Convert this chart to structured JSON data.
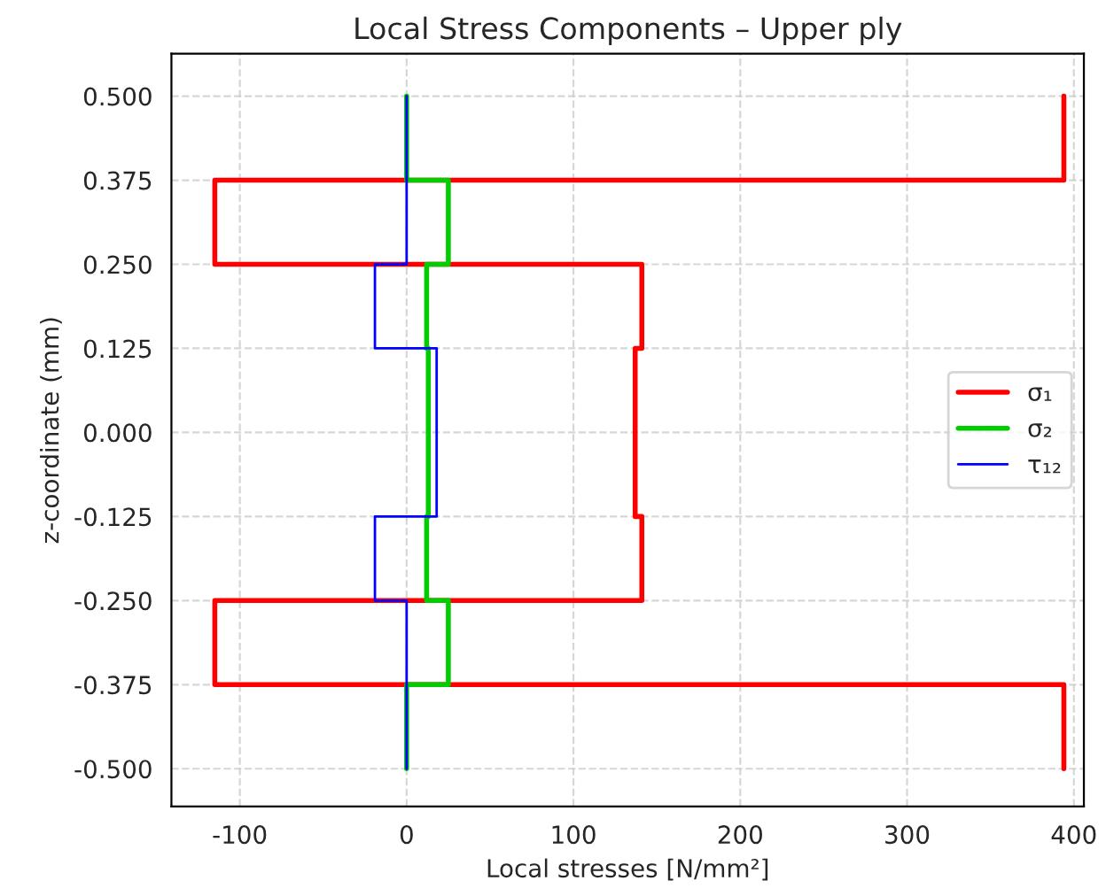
{
  "chart_data": {
    "type": "line",
    "title": "Local Stress Components – Upper ply",
    "xlabel": "Local stresses [N/mm²]",
    "ylabel": "z-coordinate (mm)",
    "series": [
      {
        "name": "σ₁",
        "color": "#ff0000",
        "x": [
          394,
          394,
          -115,
          -115,
          141,
          141,
          137,
          137,
          141,
          141,
          -115,
          -115,
          394,
          394
        ],
        "values": [
          0.5,
          0.375,
          0.375,
          0.25,
          0.25,
          0.125,
          0.125,
          -0.125,
          -0.125,
          -0.25,
          -0.25,
          -0.375,
          -0.375,
          -0.5
        ]
      },
      {
        "name": "σ₂",
        "color": "#00cc00",
        "x": [
          0,
          0,
          25,
          25,
          12,
          12,
          13,
          13,
          12,
          12,
          25,
          25,
          0,
          0
        ],
        "values": [
          0.5,
          0.375,
          0.375,
          0.25,
          0.25,
          0.125,
          0.125,
          -0.125,
          -0.125,
          -0.25,
          -0.25,
          -0.375,
          -0.375,
          -0.5
        ]
      },
      {
        "name": "τ₁₂",
        "color": "#0000ff",
        "x": [
          0,
          0,
          0,
          0,
          -19,
          -19,
          18,
          18,
          -19,
          -19,
          0,
          0,
          0,
          0
        ],
        "values": [
          0.5,
          0.375,
          0.375,
          0.25,
          0.25,
          0.125,
          0.125,
          -0.125,
          -0.125,
          -0.25,
          -0.25,
          -0.375,
          -0.375,
          -0.5
        ]
      }
    ],
    "xlim": [
      -141,
      406
    ],
    "xticks": [
      -100,
      0,
      100,
      200,
      300,
      400
    ],
    "ylim": [
      -0.556,
      0.563
    ],
    "yticks": [
      {
        "value": -0.5,
        "label": "-0.500"
      },
      {
        "value": -0.375,
        "label": "-0.375"
      },
      {
        "value": -0.25,
        "label": "-0.250"
      },
      {
        "value": -0.125,
        "label": "-0.125"
      },
      {
        "value": 0,
        "label": "0.000"
      },
      {
        "value": 0.125,
        "label": "0.125"
      },
      {
        "value": 0.25,
        "label": "0.250"
      },
      {
        "value": 0.375,
        "label": "0.375"
      },
      {
        "value": 0.5,
        "label": "0.500"
      }
    ],
    "grid": true,
    "legend": "center right",
    "marker": "none",
    "line_style": "solid"
  }
}
